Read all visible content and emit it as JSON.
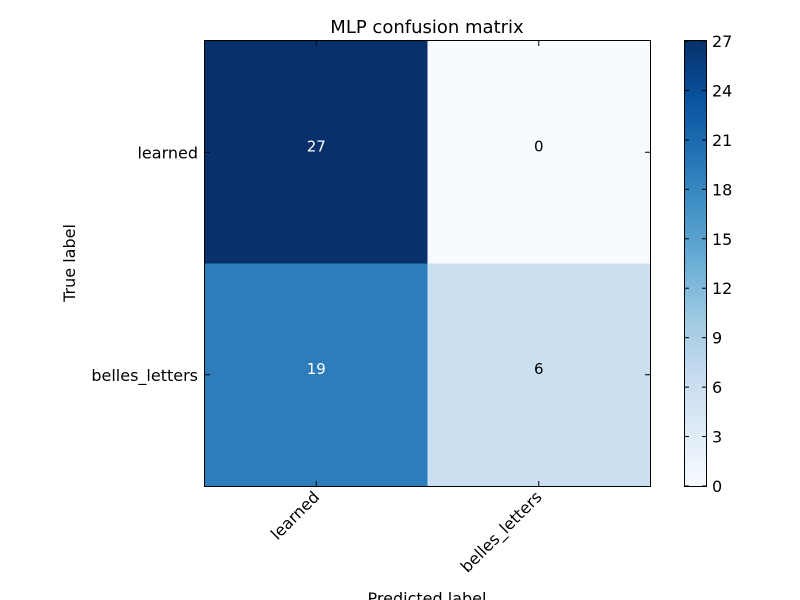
{
  "chart_data": {
    "type": "heatmap",
    "title": "MLP confusion matrix",
    "xlabel": "Predicted label",
    "ylabel": "True label",
    "x_categories": [
      "learned",
      "belles_letters"
    ],
    "y_categories": [
      "learned",
      "belles_letters"
    ],
    "values": [
      [
        27,
        0
      ],
      [
        19,
        6
      ]
    ],
    "colormap": "Blues",
    "colorbar": {
      "min": 0,
      "max": 27,
      "ticks": [
        0,
        3,
        6,
        9,
        12,
        15,
        18,
        21,
        24,
        27
      ]
    },
    "text_colors": {
      "dark_cell": "#ffffff",
      "light_cell": "#000000"
    },
    "threshold": 13.5
  }
}
